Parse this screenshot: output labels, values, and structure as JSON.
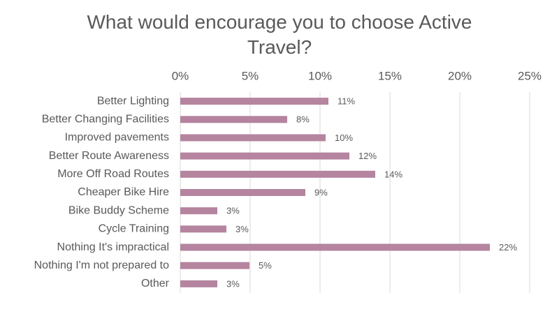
{
  "chart_data": {
    "type": "bar",
    "orientation": "horizontal",
    "title": "What would encourage you to choose Active Travel?",
    "categories": [
      "Better Lighting",
      "Better Changing Facilities",
      "Improved pavements",
      "Better Route Awareness",
      "More Off Road Routes",
      "Cheaper Bike Hire",
      "Bike Buddy Scheme",
      "Cycle Training",
      "Nothing It's impractical",
      "Nothing I'm not prepared to",
      "Other"
    ],
    "values": [
      10.6,
      7.65,
      10.4,
      12.1,
      13.95,
      8.95,
      2.65,
      3.3,
      22.15,
      4.95,
      2.65
    ],
    "value_labels": [
      "11%",
      "8%",
      "10%",
      "12%",
      "14%",
      "9%",
      "3%",
      "3%",
      "22%",
      "5%",
      "3%"
    ],
    "color": "#b5849f",
    "xlim": [
      0,
      25
    ],
    "xticks": [
      {
        "value": 0,
        "label": "0%"
      },
      {
        "value": 5,
        "label": "5%"
      },
      {
        "value": 10,
        "label": "10%"
      },
      {
        "value": 15,
        "label": "15%"
      },
      {
        "value": 20,
        "label": "20%"
      },
      {
        "value": 25,
        "label": "25%"
      }
    ],
    "grid": true
  }
}
